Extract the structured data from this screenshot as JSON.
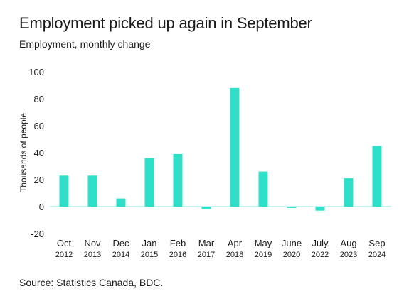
{
  "header": {
    "title": "Employment picked up again in September",
    "subtitle": "Employment, monthly change"
  },
  "footer": {
    "source": "Source: Statistics Canada, BDC."
  },
  "chart_data": {
    "type": "bar",
    "categories": [
      "Oct",
      "Nov",
      "Dec",
      "Jan",
      "Feb",
      "Mar",
      "Apr",
      "May",
      "June",
      "July",
      "Aug",
      "Sep"
    ],
    "category_years": [
      "2012",
      "2013",
      "2014",
      "2015",
      "2016",
      "2017",
      "2018",
      "2019",
      "2020",
      "2022",
      "2023",
      "2024"
    ],
    "values": [
      23,
      23,
      6,
      36,
      39,
      -2,
      88,
      26,
      -1,
      -3,
      21,
      45
    ],
    "ylabel": "Thousands of people",
    "xlabel": "",
    "ylim": [
      -20,
      100
    ],
    "yticks": [
      -20,
      0,
      20,
      40,
      60,
      80,
      100
    ],
    "bar_color": "#2ee0c8",
    "grid": false,
    "legend": "none"
  }
}
